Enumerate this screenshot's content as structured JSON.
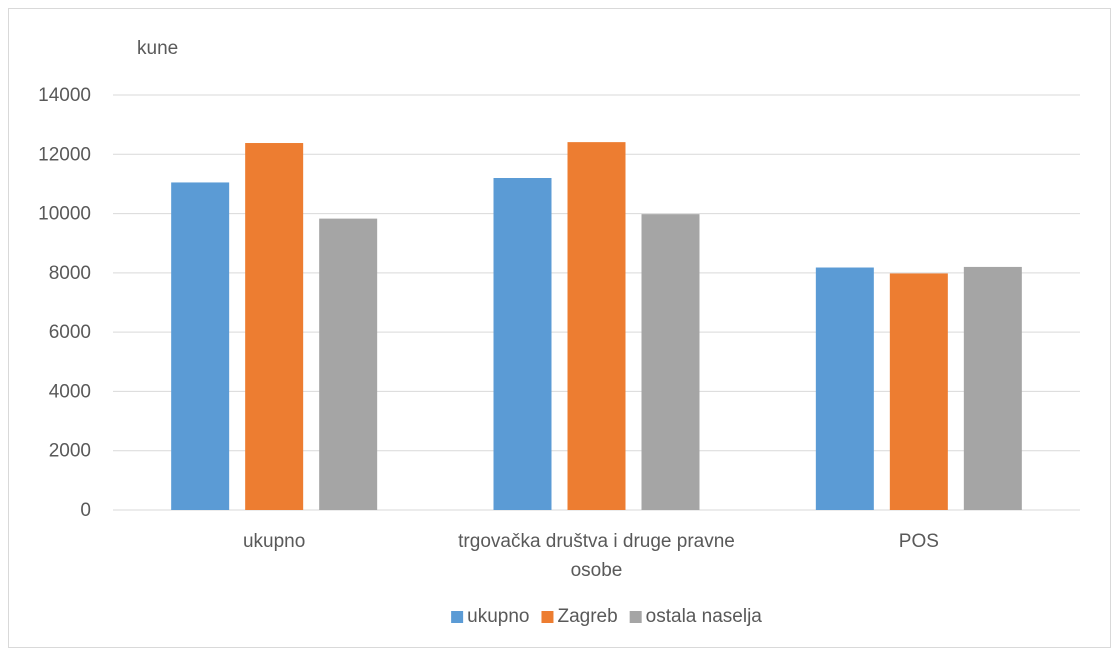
{
  "chart_data": {
    "type": "bar",
    "unit_label": "kune",
    "categories": [
      "ukupno",
      "trgovačka društva i druge pravne osobe",
      "POS"
    ],
    "category_lines": [
      [
        "ukupno"
      ],
      [
        "trgovačka društva i druge pravne",
        "osobe"
      ],
      [
        "POS"
      ]
    ],
    "series": [
      {
        "name": "ukupno",
        "color": "#5b9bd5",
        "values": [
          11050,
          11200,
          8180
        ]
      },
      {
        "name": "Zagreb",
        "color": "#ed7d31",
        "values": [
          12380,
          12410,
          7980
        ]
      },
      {
        "name": "ostala naselja",
        "color": "#a5a5a5",
        "values": [
          9830,
          9980,
          8200
        ]
      }
    ],
    "ylim": [
      0,
      14000
    ],
    "yticks": [
      0,
      2000,
      4000,
      6000,
      8000,
      10000,
      12000,
      14000
    ],
    "grid": true,
    "legend_position": "bottom"
  }
}
